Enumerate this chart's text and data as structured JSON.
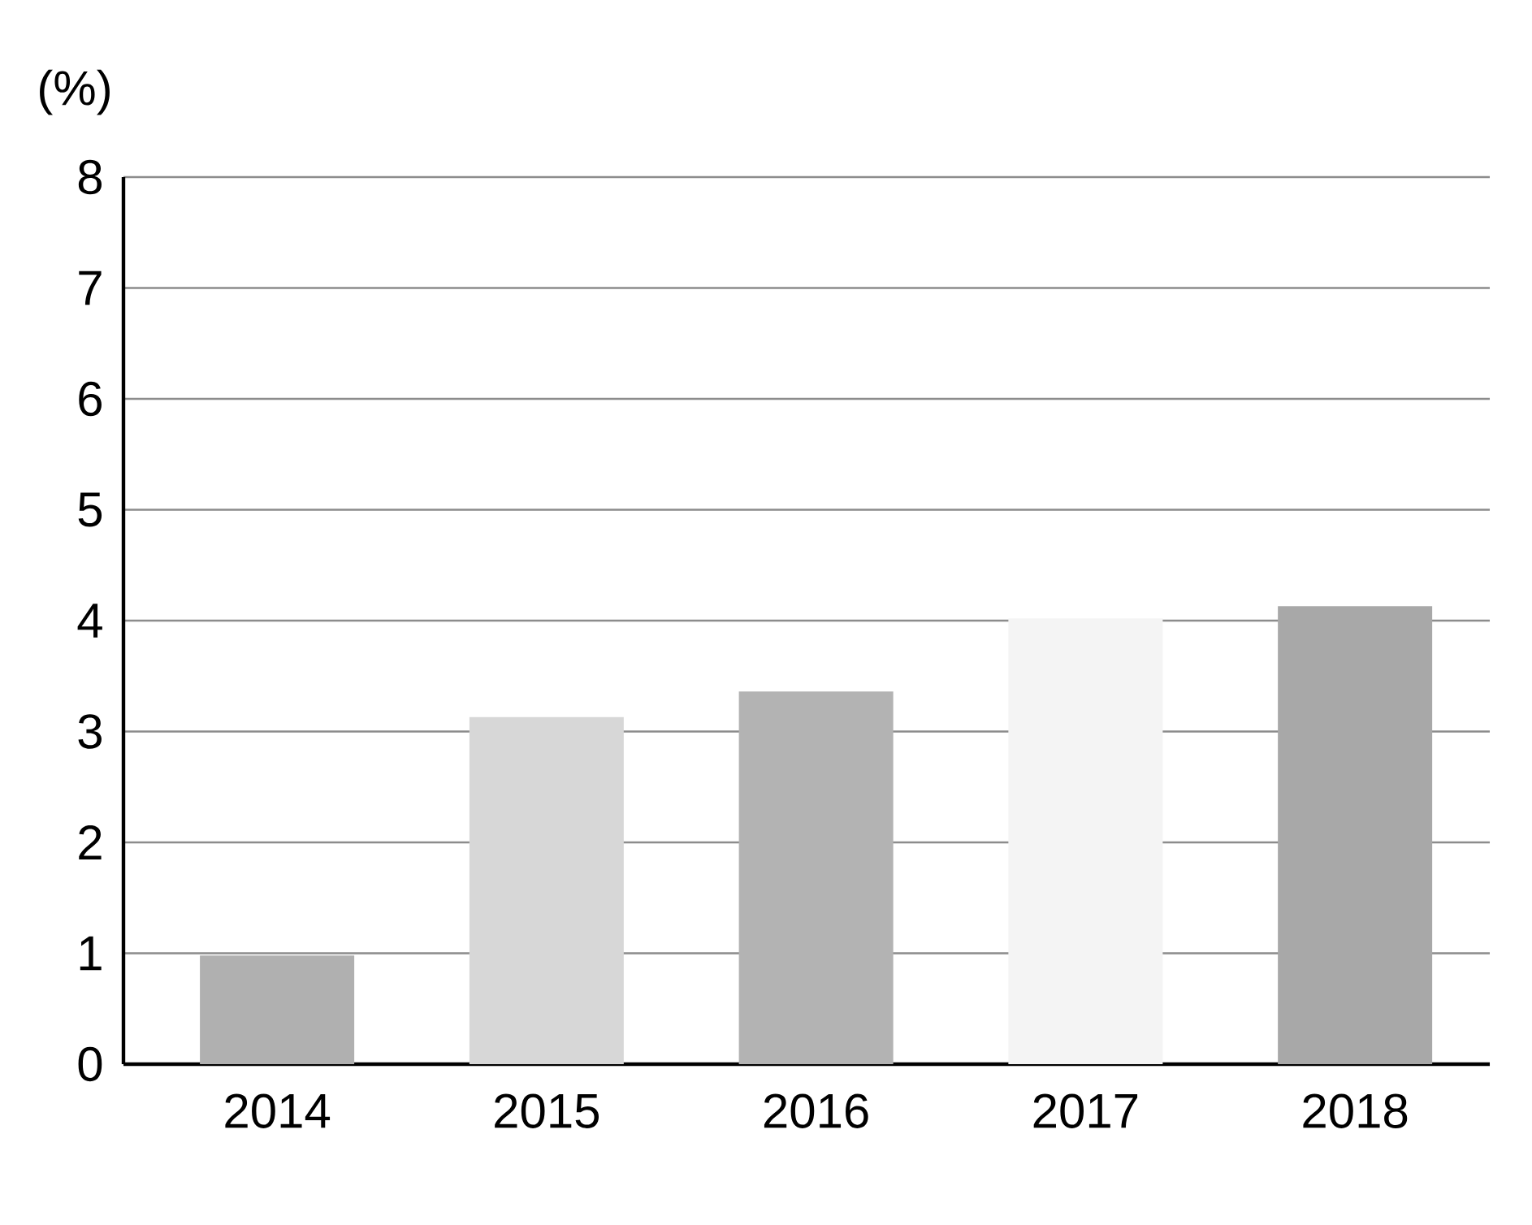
{
  "chart_data": {
    "type": "bar",
    "ylabel": "(%)",
    "categories": [
      "2014",
      "2015",
      "2016",
      "2017",
      "2018"
    ],
    "values": [
      0.98,
      3.13,
      3.36,
      4.02,
      4.13
    ],
    "colors": [
      "#b0b0b0",
      "#d7d7d7",
      "#b3b3b3",
      "#f4f4f4",
      "#a8a8a8"
    ],
    "ylim": [
      0,
      8
    ],
    "yticks": [
      0,
      1,
      2,
      3,
      4,
      5,
      6,
      7,
      8
    ],
    "grid": "y"
  }
}
